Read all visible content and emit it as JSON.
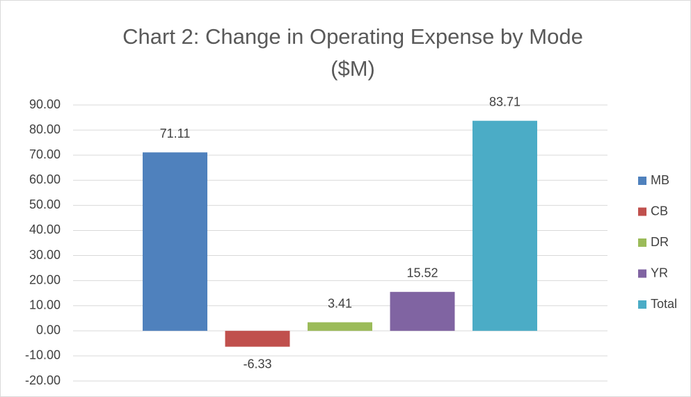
{
  "chart_data": {
    "type": "bar",
    "title": "Chart 2: Change in Operating Expense by Mode ($M)",
    "categories": [
      null
    ],
    "series": [
      {
        "name": "MB",
        "color": "#4f81bd",
        "values": [
          71.11
        ]
      },
      {
        "name": "CB",
        "color": "#c0504d",
        "values": [
          -6.33
        ]
      },
      {
        "name": "DR",
        "color": "#9bbb59",
        "values": [
          3.41
        ]
      },
      {
        "name": "YR",
        "color": "#8064a2",
        "values": [
          15.52
        ]
      },
      {
        "name": "Total",
        "color": "#4bacc6",
        "values": [
          83.71
        ]
      }
    ],
    "ylim": [
      -20,
      90
    ],
    "yticks": [
      {
        "value": -20,
        "label": "-20.00"
      },
      {
        "value": -10,
        "label": "-10.00"
      },
      {
        "value": 0,
        "label": "0.00"
      },
      {
        "value": 10,
        "label": "10.00"
      },
      {
        "value": 20,
        "label": "20.00"
      },
      {
        "value": 30,
        "label": "30.00"
      },
      {
        "value": 40,
        "label": "40.00"
      },
      {
        "value": 50,
        "label": "50.00"
      },
      {
        "value": 60,
        "label": "60.00"
      },
      {
        "value": 70,
        "label": "70.00"
      },
      {
        "value": 80,
        "label": "80.00"
      },
      {
        "value": 90,
        "label": "90.00"
      }
    ],
    "grid": true,
    "legend": "right"
  }
}
